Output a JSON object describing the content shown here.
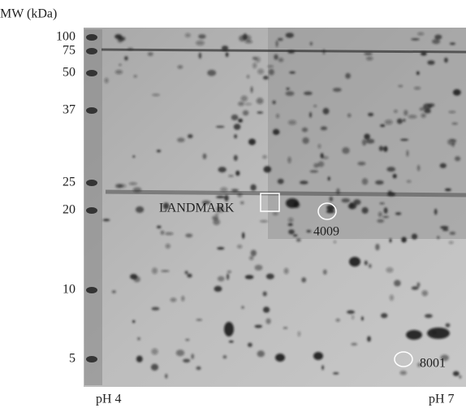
{
  "axis_title": "MW (kDa)",
  "markers": [
    "100",
    "75",
    "50",
    "37",
    "25",
    "20",
    "10",
    "5"
  ],
  "ph_labels": {
    "left": "pH 4",
    "right": "pH 7"
  },
  "annotations": {
    "landmark": "LANDMARK",
    "spot_a": "4009",
    "spot_b": "8001"
  }
}
